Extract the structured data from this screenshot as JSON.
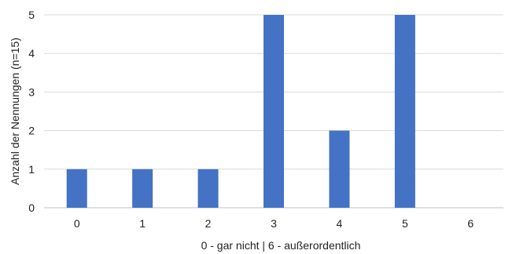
{
  "chart_data": {
    "type": "bar",
    "title": "",
    "xlabel": "0 - gar nicht | 6 - außerordentlich",
    "ylabel": "Anzahl der Nennungen (n=15)",
    "categories": [
      "0",
      "1",
      "2",
      "3",
      "4",
      "5",
      "6"
    ],
    "values": [
      1,
      1,
      1,
      5,
      2,
      5,
      0
    ],
    "ylim": [
      0,
      5
    ],
    "yticks": [
      "0",
      "1",
      "2",
      "3",
      "4",
      "5"
    ],
    "grid": true,
    "legend": "none",
    "colors": {
      "bar": "#4472c4"
    }
  }
}
